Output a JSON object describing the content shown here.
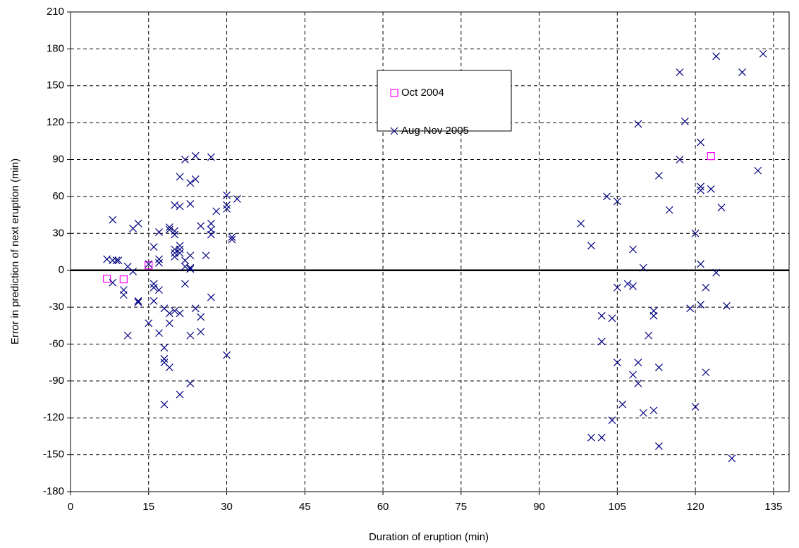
{
  "chart_data": {
    "type": "scatter",
    "x_label": "Duration of eruption (min)",
    "y_label": "Error in prediction of next eruption (min)",
    "xlim": [
      0,
      138
    ],
    "ylim": [
      -180,
      210
    ],
    "xticks": [
      0,
      15,
      30,
      45,
      60,
      75,
      90,
      105,
      120,
      135
    ],
    "yticks": [
      -180,
      -150,
      -120,
      -90,
      -60,
      -30,
      0,
      30,
      60,
      90,
      120,
      150,
      180,
      210
    ],
    "grid": true,
    "legend": "top center",
    "series": [
      {
        "name": "Oct 2004",
        "color": "#ff00ff",
        "marker": "square",
        "x": [
          7,
          10.2,
          15,
          123
        ],
        "values": [
          -6.9,
          -7.4,
          4,
          92.8
        ]
      },
      {
        "name": "Aug-Nov 2005",
        "color": "#000080",
        "marker": "cross",
        "x": [
          7,
          8.1,
          8.8,
          9.2,
          8.1,
          8.1,
          10.2,
          10.2,
          11,
          11,
          12,
          12,
          13,
          13,
          13,
          15,
          15,
          16,
          16,
          16,
          16,
          17,
          17,
          17,
          17,
          17,
          18,
          18,
          18,
          18,
          18,
          19,
          19,
          19,
          19,
          19,
          20,
          20,
          20,
          20,
          20,
          20,
          20,
          21,
          21,
          21,
          21,
          21,
          21,
          21,
          22,
          22,
          22,
          22,
          23,
          24,
          24,
          23,
          23,
          23,
          23,
          23,
          23,
          24,
          25,
          25,
          25,
          26,
          27,
          27,
          27,
          27,
          27,
          28,
          30,
          30,
          30,
          30,
          31,
          31,
          32,
          98,
          100,
          100,
          102,
          102,
          102,
          103,
          104,
          104,
          105,
          105,
          105,
          106,
          107,
          108,
          108,
          108,
          109,
          109,
          109,
          110,
          110,
          111,
          112,
          112,
          112,
          113,
          113,
          113,
          115,
          117,
          117,
          118,
          119,
          120,
          120,
          121,
          121,
          121,
          121,
          121,
          122,
          122,
          123,
          124,
          124,
          125,
          126,
          127,
          129,
          132,
          133
        ],
        "values": [
          9,
          8,
          8,
          8,
          41,
          -10,
          -16,
          -20,
          3,
          -53,
          -1,
          34,
          38,
          -25,
          -26,
          -43,
          5,
          19,
          -11,
          -14,
          -25,
          9,
          6,
          31,
          -16,
          -51,
          -31,
          -63,
          -72,
          -75,
          -109,
          35,
          33,
          -35,
          -43,
          -79,
          29,
          32,
          53,
          17,
          14,
          11,
          -33,
          76,
          52,
          20,
          17,
          14,
          -35,
          -101,
          90,
          -11,
          3,
          8,
          71,
          74,
          93,
          54,
          12,
          2,
          1,
          -53,
          -92,
          -31,
          36,
          -38,
          -50,
          12,
          92,
          38,
          33,
          29,
          -22,
          48,
          61,
          53,
          50,
          -69,
          27,
          25,
          58,
          38,
          20,
          -136,
          -136,
          -58,
          -37,
          60,
          -39,
          -122,
          56,
          -14,
          -75,
          -109,
          -11,
          17,
          -13,
          -85,
          119,
          -75,
          -92,
          2,
          -116,
          -53,
          -33,
          -37,
          -114,
          77,
          -79,
          -143,
          49,
          161,
          90,
          121,
          -31,
          30,
          -111,
          104,
          68,
          65,
          5,
          -28,
          -14,
          -83,
          66,
          -2,
          174,
          51,
          -29,
          -153,
          161,
          81,
          176
        ]
      }
    ]
  }
}
